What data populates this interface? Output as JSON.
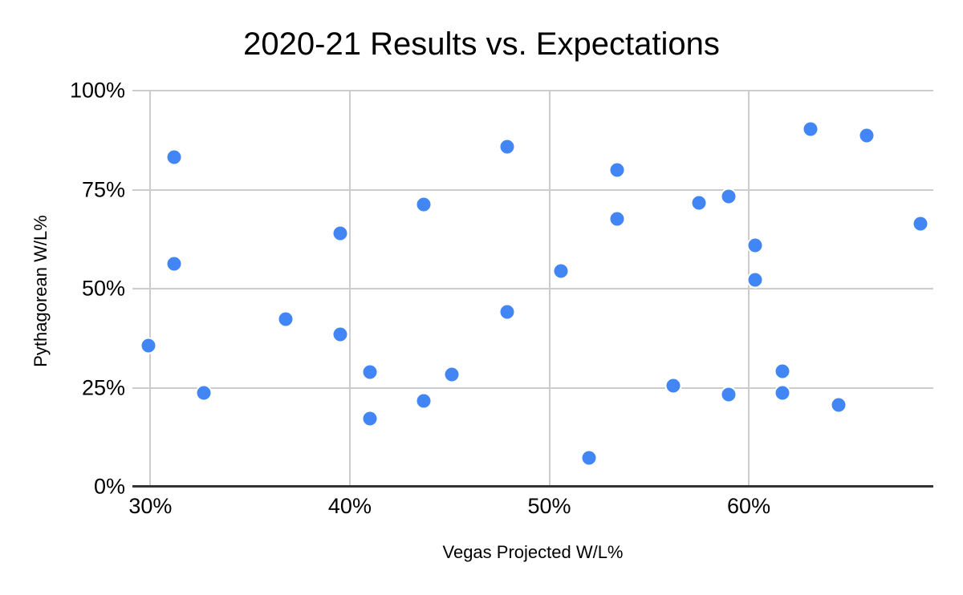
{
  "chart_data": {
    "type": "scatter",
    "title": "2020-21 Results vs. Expectations",
    "xlabel": "Vegas Projected W/L%",
    "ylabel": "Pythagorean W/L%",
    "xlim": [
      29.1,
      69.25
    ],
    "ylim": [
      0,
      100
    ],
    "grid": true,
    "legend_position": "none",
    "x_ticks": [
      {
        "value": 30,
        "label": "30%"
      },
      {
        "value": 40,
        "label": "40%"
      },
      {
        "value": 50,
        "label": "50%"
      },
      {
        "value": 60,
        "label": "60%"
      }
    ],
    "y_ticks": [
      {
        "value": 0,
        "label": "0%"
      },
      {
        "value": 25,
        "label": "25%"
      },
      {
        "value": 50,
        "label": "50%"
      },
      {
        "value": 75,
        "label": "75%"
      },
      {
        "value": 100,
        "label": "100%"
      }
    ],
    "colors": {
      "point": "#4285f4",
      "gridline": "#cccccc",
      "axis_line": "#333333",
      "text": "#000000"
    },
    "points": [
      [
        29.9,
        35.6
      ],
      [
        31.2,
        83.2
      ],
      [
        31.2,
        56.3
      ],
      [
        32.7,
        23.7
      ],
      [
        36.8,
        42.3
      ],
      [
        39.5,
        64.0
      ],
      [
        39.5,
        38.5
      ],
      [
        41.0,
        28.9
      ],
      [
        41.0,
        17.2
      ],
      [
        43.7,
        71.3
      ],
      [
        43.7,
        21.7
      ],
      [
        45.1,
        28.3
      ],
      [
        47.9,
        85.8
      ],
      [
        47.9,
        44.1
      ],
      [
        50.6,
        54.5
      ],
      [
        52.0,
        7.3
      ],
      [
        53.4,
        80.0
      ],
      [
        53.4,
        67.6
      ],
      [
        56.2,
        25.5
      ],
      [
        57.5,
        71.7
      ],
      [
        59.0,
        73.3
      ],
      [
        59.0,
        23.3
      ],
      [
        60.3,
        60.9
      ],
      [
        60.3,
        52.2
      ],
      [
        61.7,
        29.1
      ],
      [
        61.7,
        23.7
      ],
      [
        63.1,
        90.3
      ],
      [
        64.5,
        20.6
      ],
      [
        65.9,
        88.7
      ],
      [
        68.6,
        66.4
      ]
    ]
  }
}
